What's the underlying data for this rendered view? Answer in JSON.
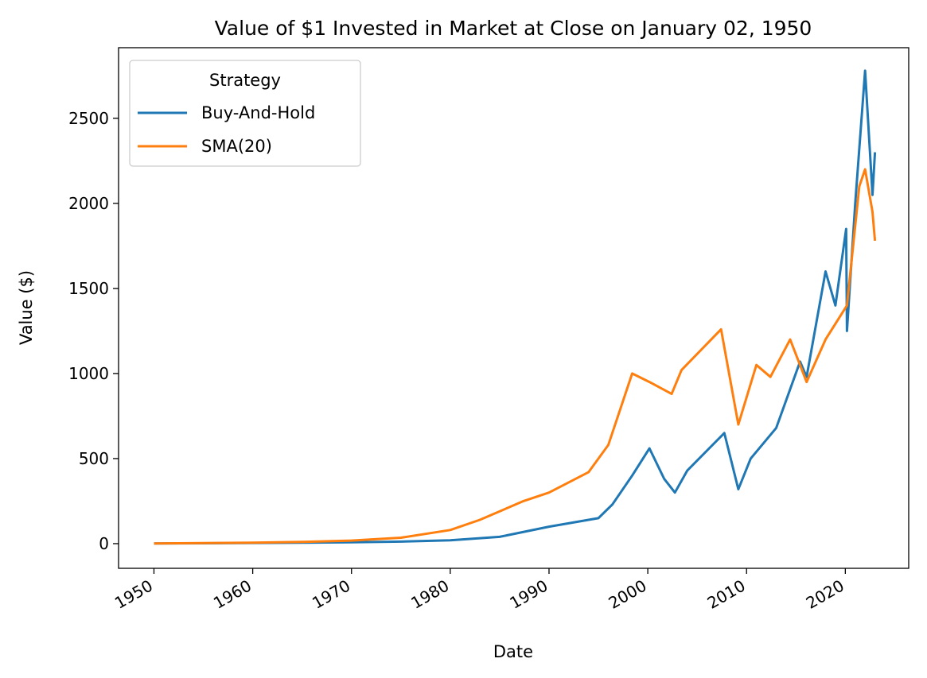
{
  "chart_data": {
    "type": "line",
    "title": "Value of $1 Invested in Market at Close on January 02, 1950",
    "xlabel": "Date",
    "ylabel": "Value ($)",
    "x_axis": {
      "type": "date",
      "ticks": [
        "1950",
        "1960",
        "1970",
        "1980",
        "1990",
        "2000",
        "2010",
        "2020"
      ],
      "range": [
        "1946-06",
        "2026-06"
      ]
    },
    "y_axis": {
      "ticks": [
        0,
        500,
        1000,
        1500,
        2000,
        2500
      ],
      "range": [
        -145,
        2915
      ]
    },
    "grid": false,
    "legend": {
      "title": "Strategy",
      "position": "top-left"
    },
    "series": [
      {
        "name": "Buy-And-Hold",
        "color": "#1f77b4",
        "x": [
          "1950-01-02",
          "1955-01",
          "1960-01",
          "1965-01",
          "1970-01",
          "1975-01",
          "1980-01",
          "1985-01",
          "1990-01",
          "1995-01",
          "1996-06",
          "1998-06",
          "2000-03",
          "2001-09",
          "2002-10",
          "2004-01",
          "2007-10",
          "2009-03",
          "2010-06",
          "2013-01",
          "2015-06",
          "2016-02",
          "2018-01",
          "2019-01",
          "2020-02",
          "2020-03",
          "2021-01",
          "2022-01",
          "2022-10",
          "2023-01"
        ],
        "y": [
          1,
          2,
          4,
          6,
          8,
          12,
          20,
          40,
          100,
          150,
          230,
          400,
          560,
          380,
          300,
          430,
          650,
          320,
          500,
          680,
          1070,
          980,
          1600,
          1400,
          1850,
          1250,
          2000,
          2780,
          2050,
          2300
        ]
      },
      {
        "name": "SMA(20)",
        "color": "#ff7f0e",
        "x": [
          "1950-01-02",
          "1955-01",
          "1960-01",
          "1965-01",
          "1970-01",
          "1975-01",
          "1980-01",
          "1983-01",
          "1987-06",
          "1990-01",
          "1994-01",
          "1996-01",
          "1998-06",
          "2000-03",
          "2002-06",
          "2003-06",
          "2007-06",
          "2009-03",
          "2011-01",
          "2012-06",
          "2014-06",
          "2016-02",
          "2018-01",
          "2020-03",
          "2021-06",
          "2022-01",
          "2022-10",
          "2023-01"
        ],
        "y": [
          1,
          3,
          6,
          10,
          18,
          35,
          80,
          140,
          250,
          300,
          420,
          580,
          1000,
          950,
          880,
          1020,
          1260,
          700,
          1050,
          980,
          1200,
          950,
          1200,
          1400,
          2100,
          2200,
          1950,
          1780
        ]
      }
    ]
  }
}
